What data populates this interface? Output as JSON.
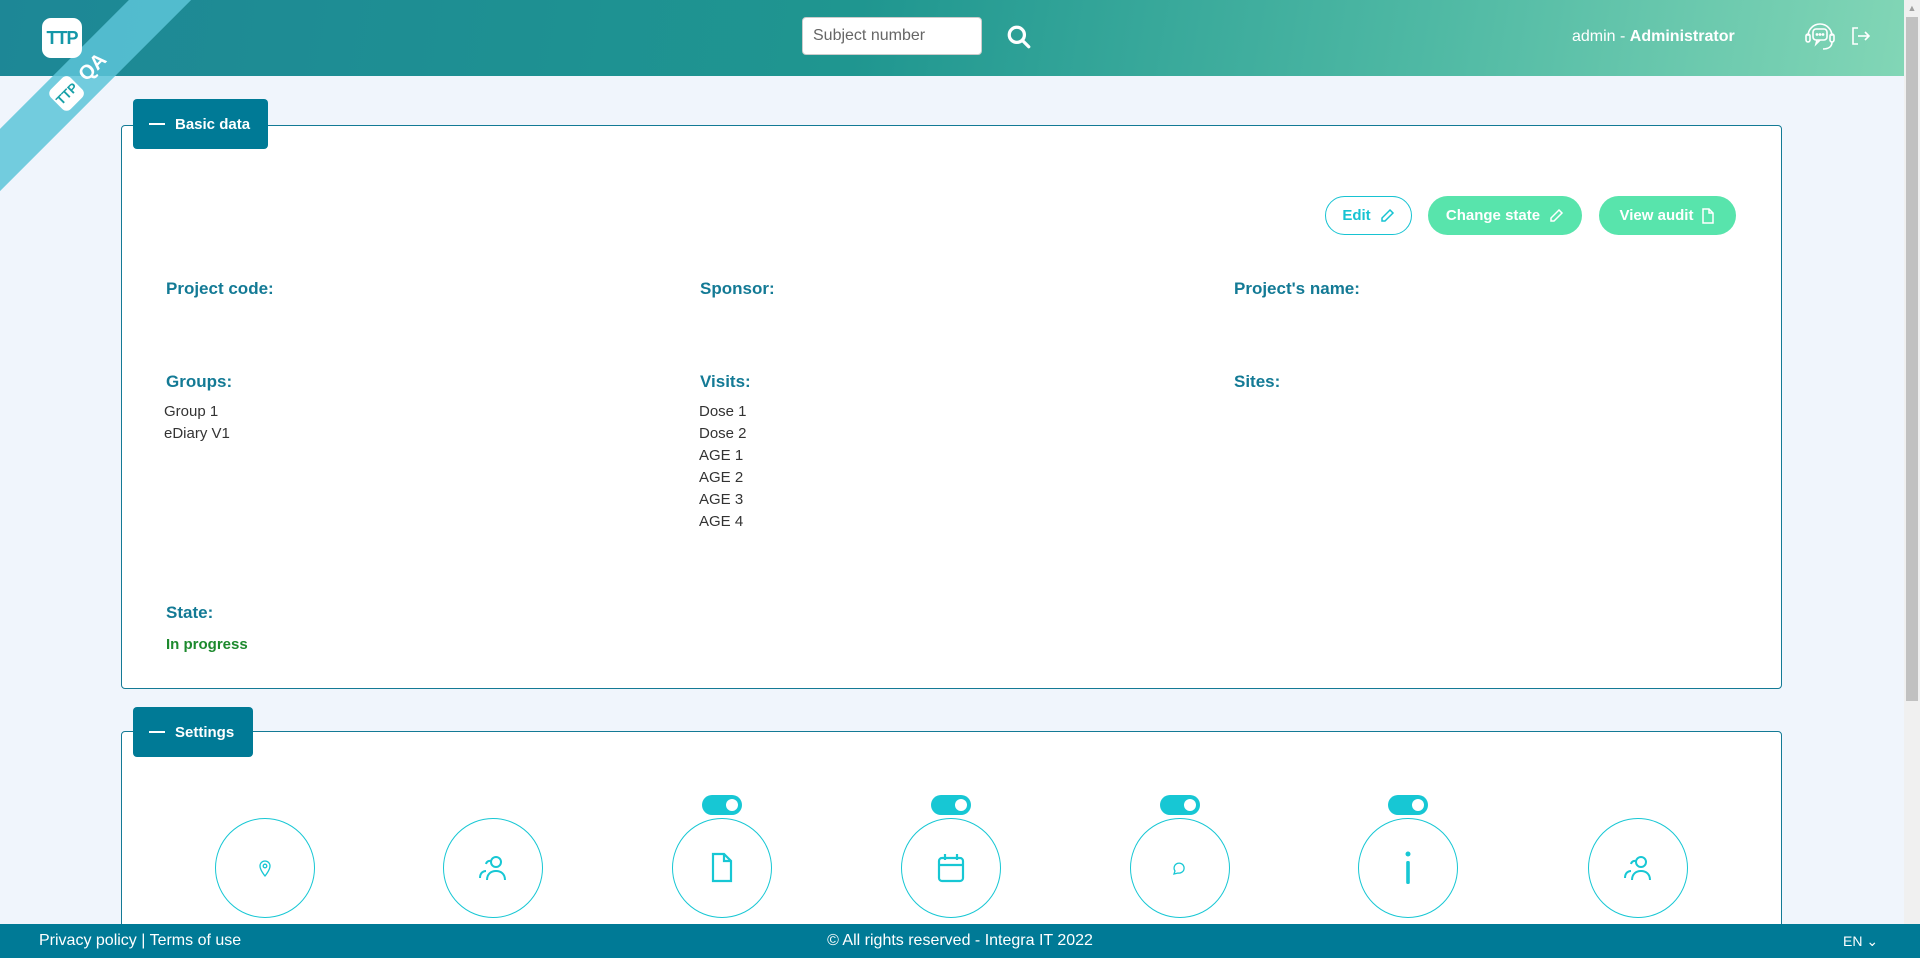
{
  "header": {
    "logo": "TTP",
    "env_badge": "QA",
    "search_placeholder": "Subject number",
    "user_name": "admin",
    "user_sep": " - ",
    "user_role": "Administrator"
  },
  "basic": {
    "title": "Basic data",
    "buttons": {
      "edit": "Edit",
      "change_state": "Change state",
      "view_audit": "View audit"
    },
    "project_code_label": "Project code:",
    "sponsor_label": "Sponsor:",
    "project_name_label": "Project's name:",
    "groups_label": "Groups:",
    "groups": [
      "Group 1",
      "eDiary V1"
    ],
    "visits_label": "Visits:",
    "visits": [
      "Dose 1",
      "Dose 2",
      "AGE 1",
      "AGE 2",
      "AGE 3",
      "AGE 4"
    ],
    "sites_label": "Sites:",
    "state_label": "State:",
    "state_value": "In progress"
  },
  "settings": {
    "title": "Settings",
    "items": [
      {
        "icon": "location-pin-icon",
        "toggle": null
      },
      {
        "icon": "users-icon",
        "toggle": null
      },
      {
        "icon": "document-icon",
        "toggle": true
      },
      {
        "icon": "calendar-icon",
        "toggle": true
      },
      {
        "icon": "chat-icon",
        "toggle": true
      },
      {
        "icon": "info-icon",
        "toggle": true
      },
      {
        "icon": "users-icon",
        "toggle": null
      }
    ]
  },
  "footer": {
    "privacy": "Privacy policy",
    "sep": " | ",
    "terms": "Terms of use",
    "copyright": "© All rights reserved - Integra IT 2022",
    "language": "EN"
  },
  "colors": {
    "primary": "#007a96",
    "accent": "#17c7d4",
    "green": "#58e4ac",
    "state": "#1d8a2e"
  }
}
